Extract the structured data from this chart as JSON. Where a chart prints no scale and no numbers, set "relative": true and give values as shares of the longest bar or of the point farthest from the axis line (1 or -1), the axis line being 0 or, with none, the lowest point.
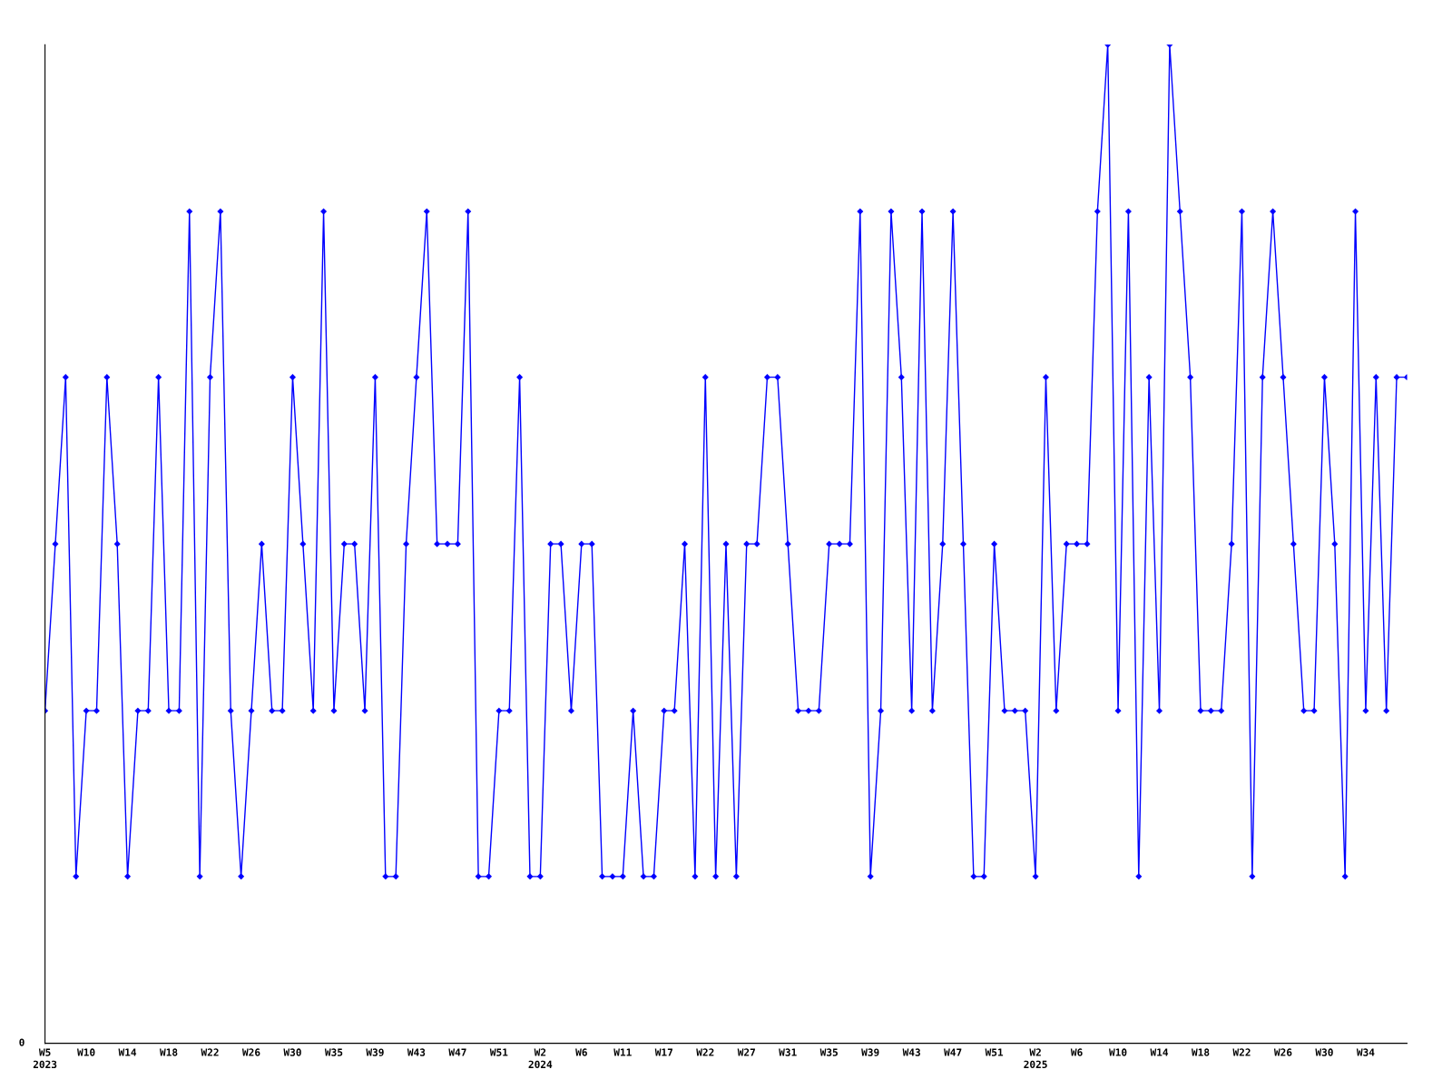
{
  "chart_data": {
    "type": "line",
    "relative": true,
    "marker": "diamond",
    "line_style": "solid",
    "annotations": [
      "0"
    ],
    "categories": [
      "W5\n2023",
      null,
      null,
      null,
      "W10",
      null,
      null,
      null,
      "W14",
      null,
      null,
      null,
      "W18",
      null,
      null,
      null,
      "W22",
      null,
      null,
      null,
      "W26",
      null,
      null,
      null,
      "W30",
      null,
      null,
      null,
      "W35",
      null,
      null,
      null,
      "W39",
      null,
      null,
      null,
      "W43",
      null,
      null,
      null,
      "W47",
      null,
      null,
      null,
      "W51",
      null,
      null,
      null,
      "W2\n2024",
      null,
      null,
      null,
      "W6",
      null,
      null,
      null,
      "W11",
      null,
      null,
      null,
      "W17",
      null,
      null,
      null,
      "W22",
      null,
      null,
      null,
      "W27",
      null,
      null,
      null,
      "W31",
      null,
      null,
      null,
      "W35",
      null,
      null,
      null,
      "W39",
      null,
      null,
      null,
      "W43",
      null,
      null,
      null,
      "W47",
      null,
      null,
      null,
      "W51",
      null,
      null,
      null,
      "W2\n2025",
      null,
      null,
      null,
      "W6",
      null,
      null,
      null,
      "W10",
      null,
      null,
      null,
      "W14",
      null,
      null,
      null,
      "W18",
      null,
      null,
      null,
      "W22",
      null,
      null,
      null,
      "W26",
      null,
      null,
      null,
      "W30",
      null,
      null,
      null,
      "W34",
      null,
      null,
      null,
      null
    ],
    "series": [
      {
        "color": "#0000ff",
        "values": [
          0.333,
          0.5,
          0.667,
          0.167,
          0.333,
          0.333,
          0.667,
          0.5,
          0.167,
          0.333,
          0.333,
          0.667,
          0.333,
          0.333,
          0.833,
          0.167,
          0.667,
          0.833,
          0.333,
          0.167,
          0.333,
          0.5,
          0.333,
          0.333,
          0.667,
          0.5,
          0.333,
          0.833,
          0.333,
          0.5,
          0.5,
          0.333,
          0.667,
          0.167,
          0.167,
          0.5,
          0.667,
          0.833,
          0.5,
          0.5,
          0.5,
          0.833,
          0.167,
          0.167,
          0.333,
          0.333,
          0.667,
          0.167,
          0.167,
          0.5,
          0.5,
          0.333,
          0.5,
          0.5,
          0.167,
          0.167,
          0.167,
          0.333,
          0.167,
          0.167,
          0.333,
          0.333,
          0.5,
          0.167,
          0.667,
          0.167,
          0.5,
          0.167,
          0.5,
          0.5,
          0.667,
          0.667,
          0.5,
          0.333,
          0.333,
          0.333,
          0.5,
          0.5,
          0.5,
          0.833,
          0.167,
          0.333,
          0.833,
          0.667,
          0.333,
          0.833,
          0.333,
          0.5,
          0.833,
          0.5,
          0.167,
          0.167,
          0.5,
          0.333,
          0.333,
          0.333,
          0.167,
          0.667,
          0.333,
          0.5,
          0.5,
          0.5,
          0.833,
          1,
          0.333,
          0.833,
          0.167,
          0.667,
          0.333,
          1,
          0.833,
          0.667,
          0.333,
          0.333,
          0.333,
          0.5,
          0.833,
          0.167,
          0.667,
          0.833,
          0.667,
          0.5,
          0.333,
          0.333,
          0.667,
          0.5,
          0.167,
          0.833,
          0.333,
          0.667,
          0.333,
          0.667,
          0.667
        ]
      }
    ]
  }
}
